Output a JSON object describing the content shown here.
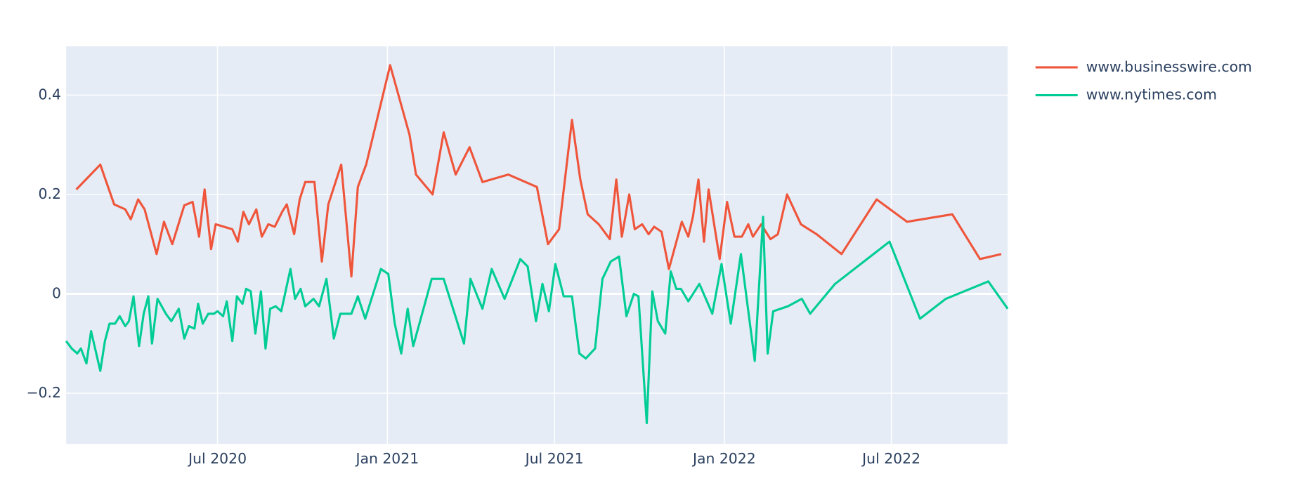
{
  "chart_data": {
    "type": "line",
    "series": [
      {
        "name": "www.businesswire.com",
        "color": "#ef553b",
        "x": [
          "2020-01-30",
          "2020-02-25",
          "2020-03-11",
          "2020-03-23",
          "2020-03-29",
          "2020-04-06",
          "2020-04-13",
          "2020-04-26",
          "2020-05-04",
          "2020-05-13",
          "2020-05-26",
          "2020-06-04",
          "2020-06-11",
          "2020-06-17",
          "2020-06-24",
          "2020-06-29",
          "2020-07-17",
          "2020-07-23",
          "2020-07-29",
          "2020-08-04",
          "2020-08-12",
          "2020-08-18",
          "2020-08-25",
          "2020-09-01",
          "2020-09-09",
          "2020-09-14",
          "2020-09-22",
          "2020-09-28",
          "2020-10-04",
          "2020-10-14",
          "2020-10-22",
          "2020-10-29",
          "2020-11-12",
          "2020-11-23",
          "2020-11-30",
          "2020-12-09",
          "2021-01-04",
          "2021-01-25",
          "2021-02-01",
          "2021-02-19",
          "2021-03-03",
          "2021-03-16",
          "2021-03-31",
          "2021-04-14",
          "2021-05-12",
          "2021-06-12",
          "2021-06-24",
          "2021-07-06",
          "2021-07-20",
          "2021-07-29",
          "2021-08-06",
          "2021-08-18",
          "2021-08-30",
          "2021-09-06",
          "2021-09-12",
          "2021-09-20",
          "2021-09-26",
          "2021-10-04",
          "2021-10-11",
          "2021-10-17",
          "2021-10-25",
          "2021-11-02",
          "2021-11-16",
          "2021-11-23",
          "2021-11-28",
          "2021-12-04",
          "2021-12-10",
          "2021-12-15",
          "2021-12-27",
          "2022-01-04",
          "2022-01-12",
          "2022-01-20",
          "2022-01-27",
          "2022-02-01",
          "2022-02-10",
          "2022-02-20",
          "2022-02-28",
          "2022-03-10",
          "2022-03-20",
          "2022-03-25",
          "2022-04-11",
          "2022-05-08",
          "2022-06-15",
          "2022-07-18",
          "2022-09-05",
          "2022-10-05",
          "2022-10-28"
        ],
        "values": [
          0.21,
          0.26,
          0.18,
          0.17,
          0.15,
          0.19,
          0.17,
          0.08,
          0.145,
          0.1,
          0.178,
          0.185,
          0.115,
          0.21,
          0.09,
          0.14,
          0.13,
          0.105,
          0.165,
          0.14,
          0.17,
          0.115,
          0.14,
          0.135,
          0.165,
          0.18,
          0.12,
          0.19,
          0.225,
          0.225,
          0.065,
          0.18,
          0.26,
          0.035,
          0.215,
          0.26,
          0.46,
          0.32,
          0.24,
          0.2,
          0.325,
          0.24,
          0.295,
          0.225,
          0.24,
          0.215,
          0.1,
          0.13,
          0.35,
          0.23,
          0.16,
          0.14,
          0.11,
          0.23,
          0.115,
          0.2,
          0.13,
          0.14,
          0.12,
          0.135,
          0.125,
          0.05,
          0.145,
          0.115,
          0.155,
          0.23,
          0.105,
          0.21,
          0.07,
          0.185,
          0.115,
          0.115,
          0.14,
          0.115,
          0.14,
          0.11,
          0.12,
          0.2,
          0.16,
          0.14,
          0.12,
          0.08,
          0.19,
          0.145,
          0.16,
          0.07,
          0.08
        ]
      },
      {
        "name": "www.nytimes.com",
        "color": "#00cc96",
        "x": [
          "2020-01-19",
          "2020-01-25",
          "2020-01-31",
          "2020-02-04",
          "2020-02-10",
          "2020-02-15",
          "2020-02-25",
          "2020-03-01",
          "2020-03-06",
          "2020-03-12",
          "2020-03-17",
          "2020-03-23",
          "2020-03-27",
          "2020-04-01",
          "2020-04-07",
          "2020-04-12",
          "2020-04-17",
          "2020-04-21",
          "2020-04-27",
          "2020-05-06",
          "2020-05-12",
          "2020-05-20",
          "2020-05-26",
          "2020-05-31",
          "2020-06-06",
          "2020-06-10",
          "2020-06-15",
          "2020-06-21",
          "2020-06-27",
          "2020-07-01",
          "2020-07-07",
          "2020-07-11",
          "2020-07-17",
          "2020-07-22",
          "2020-07-28",
          "2020-08-01",
          "2020-08-06",
          "2020-08-11",
          "2020-08-17",
          "2020-08-22",
          "2020-08-27",
          "2020-09-02",
          "2020-09-08",
          "2020-09-18",
          "2020-09-23",
          "2020-09-29",
          "2020-10-04",
          "2020-10-13",
          "2020-10-19",
          "2020-10-27",
          "2020-11-04",
          "2020-11-11",
          "2020-11-23",
          "2020-11-30",
          "2020-12-08",
          "2020-12-25",
          "2021-01-02",
          "2021-01-09",
          "2021-01-16",
          "2021-01-23",
          "2021-01-29",
          "2021-02-18",
          "2021-03-03",
          "2021-03-25",
          "2021-04-01",
          "2021-04-14",
          "2021-04-24",
          "2021-05-08",
          "2021-05-25",
          "2021-06-02",
          "2021-06-11",
          "2021-06-18",
          "2021-06-25",
          "2021-07-02",
          "2021-07-11",
          "2021-07-20",
          "2021-07-28",
          "2021-08-04",
          "2021-08-14",
          "2021-08-22",
          "2021-08-31",
          "2021-09-09",
          "2021-09-17",
          "2021-09-25",
          "2021-09-30",
          "2021-10-09",
          "2021-10-15",
          "2021-10-21",
          "2021-10-29",
          "2021-11-04",
          "2021-11-10",
          "2021-11-15",
          "2021-11-23",
          "2021-12-05",
          "2021-12-19",
          "2021-12-29",
          "2022-01-08",
          "2022-01-19",
          "2022-02-03",
          "2022-02-12",
          "2022-02-17",
          "2022-02-23",
          "2022-03-11",
          "2022-03-26",
          "2022-04-04",
          "2022-05-01",
          "2022-06-29",
          "2022-08-01",
          "2022-08-29",
          "2022-10-14",
          "2022-11-04"
        ],
        "values": [
          -0.095,
          -0.11,
          -0.12,
          -0.11,
          -0.14,
          -0.075,
          -0.155,
          -0.095,
          -0.06,
          -0.06,
          -0.045,
          -0.065,
          -0.055,
          -0.005,
          -0.105,
          -0.04,
          -0.005,
          -0.1,
          -0.01,
          -0.04,
          -0.055,
          -0.03,
          -0.09,
          -0.065,
          -0.07,
          -0.02,
          -0.06,
          -0.04,
          -0.04,
          -0.035,
          -0.045,
          -0.015,
          -0.095,
          -0.005,
          -0.02,
          0.01,
          0.005,
          -0.08,
          0.005,
          -0.11,
          -0.03,
          -0.025,
          -0.035,
          0.05,
          -0.01,
          0.01,
          -0.025,
          -0.01,
          -0.025,
          0.03,
          -0.09,
          -0.04,
          -0.04,
          -0.005,
          -0.05,
          0.05,
          0.04,
          -0.06,
          -0.12,
          -0.03,
          -0.105,
          0.03,
          0.03,
          -0.1,
          0.03,
          -0.03,
          0.05,
          -0.01,
          0.07,
          0.055,
          -0.055,
          0.02,
          -0.035,
          0.06,
          -0.005,
          -0.005,
          -0.12,
          -0.13,
          -0.11,
          0.03,
          0.065,
          0.075,
          -0.045,
          0.0,
          -0.005,
          -0.26,
          0.005,
          -0.055,
          -0.08,
          0.045,
          0.01,
          0.01,
          -0.015,
          0.02,
          -0.04,
          0.06,
          -0.06,
          0.08,
          -0.135,
          0.155,
          -0.12,
          -0.035,
          -0.025,
          -0.01,
          -0.04,
          0.02,
          0.105,
          -0.05,
          -0.01,
          0.025,
          -0.03
        ]
      }
    ],
    "xlim": [
      "2020-01-19",
      "2022-11-04"
    ],
    "xticks": [
      {
        "value": "2020-07-01",
        "label": "Jul 2020"
      },
      {
        "value": "2021-01-01",
        "label": "Jan 2021"
      },
      {
        "value": "2021-07-01",
        "label": "Jul 2021"
      },
      {
        "value": "2022-01-01",
        "label": "Jan 2022"
      },
      {
        "value": "2022-07-01",
        "label": "Jul 2022"
      }
    ],
    "ylim": [
      -0.302,
      0.498
    ],
    "yticks": [
      {
        "value": -0.2,
        "label": "−0.2"
      },
      0,
      0.2,
      0.4
    ],
    "grid": true,
    "legend": "right",
    "background": "#e5ecf6"
  }
}
